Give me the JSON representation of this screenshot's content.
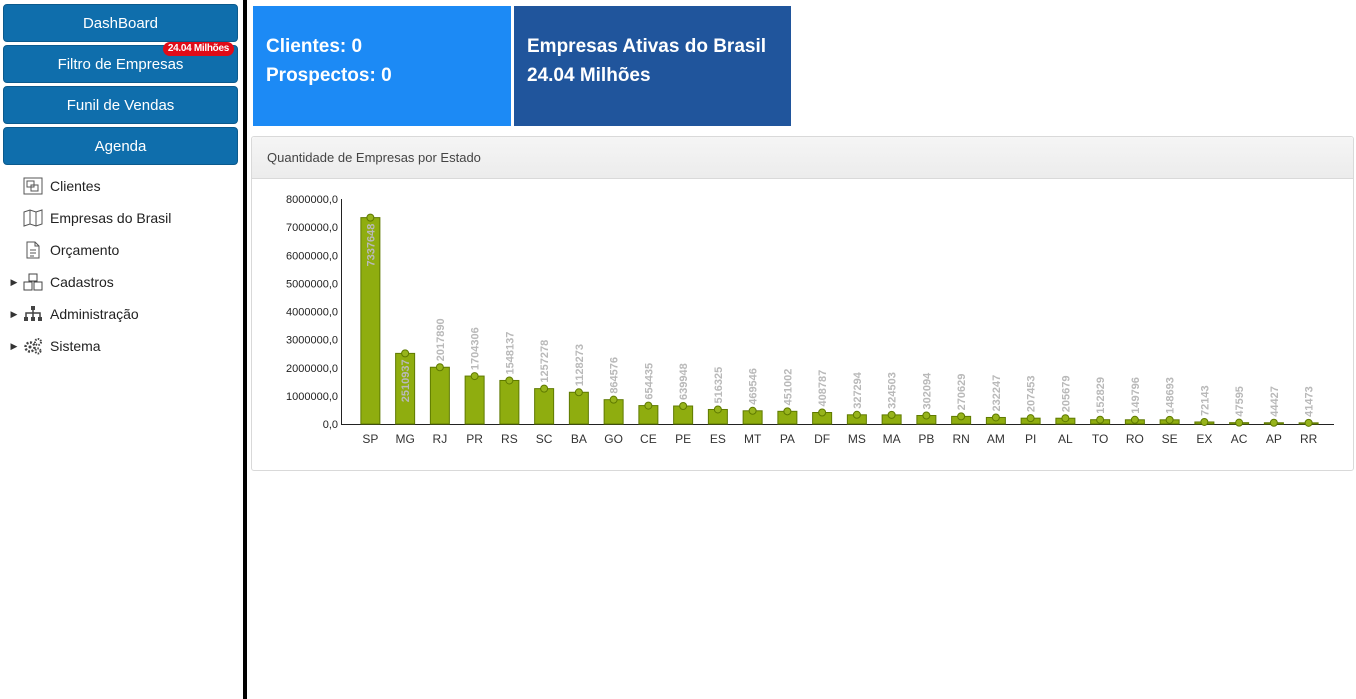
{
  "sidebar": {
    "buttons": [
      {
        "label": "DashBoard"
      },
      {
        "label": "Filtro de Empresas",
        "badge": "24.04 Milhões"
      },
      {
        "label": "Funil de Vendas"
      },
      {
        "label": "Agenda"
      }
    ],
    "items": [
      {
        "label": "Clientes",
        "icon": "clients-icon"
      },
      {
        "label": "Empresas do Brasil",
        "icon": "map-icon"
      },
      {
        "label": "Orçamento",
        "icon": "document-icon"
      },
      {
        "label": "Cadastros",
        "icon": "cubes-icon"
      },
      {
        "label": "Administração",
        "icon": "sitemap-icon"
      },
      {
        "label": "Sistema",
        "icon": "gears-icon"
      }
    ]
  },
  "cards": {
    "clientes": "Clientes: 0",
    "prospectos": "Prospectos: 0",
    "empresas_title": "Empresas Ativas do Brasil",
    "empresas_value": "24.04 Milhões"
  },
  "panel": {
    "title": "Quantidade de Empresas por Estado"
  },
  "colors": {
    "bar": "#8fad0f",
    "bar_border": "#5f7a00",
    "card1": "#1c8af5",
    "card2": "#20559c",
    "button": "#0f6eac",
    "badge": "#e00b18"
  },
  "chart_data": {
    "type": "bar",
    "title": "Quantidade de Empresas por Estado",
    "categories": [
      "SP",
      "MG",
      "RJ",
      "PR",
      "RS",
      "SC",
      "BA",
      "GO",
      "CE",
      "PE",
      "ES",
      "MT",
      "PA",
      "DF",
      "MS",
      "MA",
      "PB",
      "RN",
      "AM",
      "PI",
      "AL",
      "TO",
      "RO",
      "SE",
      "EX",
      "AC",
      "AP",
      "RR"
    ],
    "values": [
      7337648,
      2510937,
      2017890,
      1704306,
      1548137,
      1257278,
      1128273,
      864576,
      654435,
      639948,
      516325,
      469546,
      451002,
      408787,
      327294,
      324503,
      302094,
      270629,
      232247,
      207453,
      205679,
      152829,
      149796,
      148693,
      72143,
      47595,
      44427,
      41473
    ],
    "ylim": [
      0,
      8000000
    ],
    "yticks": [
      "0,0",
      "1000000,0",
      "2000000,0",
      "3000000,0",
      "4000000,0",
      "5000000,0",
      "6000000,0",
      "7000000,0",
      "8000000,0"
    ],
    "grid": false
  }
}
